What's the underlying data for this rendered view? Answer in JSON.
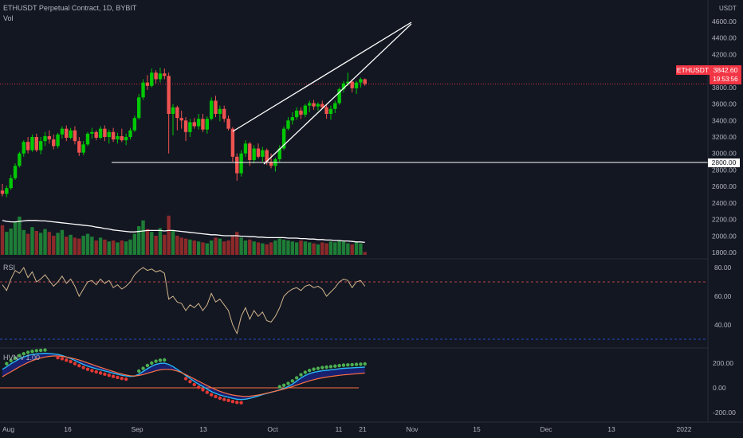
{
  "header": {
    "symbol_line": "ETHUSDT Perpetual Contract, 1D, BYBIT",
    "vol_label": "Vol"
  },
  "price_axis": {
    "currency": "USDT",
    "ticks": [
      "4600.00",
      "4400.00",
      "4200.00",
      "4000.00",
      "3800.00",
      "3600.00",
      "3400.00",
      "3200.00",
      "3000.00",
      "2800.00",
      "2600.00",
      "2400.00",
      "2200.00",
      "2000.00",
      "1800.00"
    ],
    "last_price_label": "ETHUSDT",
    "last_price": "3842.60",
    "countdown": "19:53:56",
    "hline_price": "2800.00"
  },
  "rsi": {
    "label": "RSI",
    "ticks": [
      "80.00",
      "60.00",
      "40.00"
    ],
    "upper_band": 70,
    "lower_band": 30
  },
  "hvn": {
    "label": "HVN v 1.00",
    "ticks": [
      "200.00",
      "0.00",
      "-200.00"
    ]
  },
  "time_axis": {
    "labels": [
      "Aug",
      "16",
      "Sep",
      "13",
      "Oct",
      "11",
      "21",
      "Nov",
      "15",
      "Dec",
      "13",
      "2022"
    ]
  },
  "colors": {
    "background": "#131722",
    "up": "#26a69a",
    "up_bright": "#00c805",
    "down": "#ef5350",
    "accent_red": "#f23645",
    "rsi_line": "#d1b48c",
    "hvn_fill": "#1a237e",
    "hvn_fast": "#29b6f6",
    "hvn_slow": "#ff7043"
  },
  "chart_data": {
    "type": "candlestick",
    "price_range": [
      1750,
      4650
    ],
    "candles": [
      {
        "o": 2550,
        "h": 2630,
        "l": 2480,
        "c": 2510
      },
      {
        "o": 2510,
        "h": 2610,
        "l": 2470,
        "c": 2580
      },
      {
        "o": 2580,
        "h": 2740,
        "l": 2560,
        "c": 2700
      },
      {
        "o": 2700,
        "h": 2880,
        "l": 2680,
        "c": 2850
      },
      {
        "o": 2850,
        "h": 3020,
        "l": 2830,
        "c": 3000
      },
      {
        "o": 3000,
        "h": 3160,
        "l": 2960,
        "c": 3140
      },
      {
        "o": 3140,
        "h": 3200,
        "l": 3000,
        "c": 3040
      },
      {
        "o": 3040,
        "h": 3230,
        "l": 3020,
        "c": 3200
      },
      {
        "o": 3200,
        "h": 3240,
        "l": 3020,
        "c": 3040
      },
      {
        "o": 3040,
        "h": 3200,
        "l": 2990,
        "c": 3150
      },
      {
        "o": 3150,
        "h": 3260,
        "l": 3090,
        "c": 3210
      },
      {
        "o": 3210,
        "h": 3280,
        "l": 3120,
        "c": 3170
      },
      {
        "o": 3170,
        "h": 3230,
        "l": 3050,
        "c": 3090
      },
      {
        "o": 3090,
        "h": 3250,
        "l": 3060,
        "c": 3230
      },
      {
        "o": 3230,
        "h": 3330,
        "l": 3180,
        "c": 3300
      },
      {
        "o": 3300,
        "h": 3340,
        "l": 3150,
        "c": 3190
      },
      {
        "o": 3190,
        "h": 3310,
        "l": 3170,
        "c": 3280
      },
      {
        "o": 3280,
        "h": 3330,
        "l": 3110,
        "c": 3150
      },
      {
        "o": 3150,
        "h": 3200,
        "l": 2970,
        "c": 3010
      },
      {
        "o": 3010,
        "h": 3150,
        "l": 2980,
        "c": 3110
      },
      {
        "o": 3110,
        "h": 3260,
        "l": 3090,
        "c": 3240
      },
      {
        "o": 3240,
        "h": 3310,
        "l": 3180,
        "c": 3260
      },
      {
        "o": 3260,
        "h": 3280,
        "l": 3160,
        "c": 3190
      },
      {
        "o": 3190,
        "h": 3330,
        "l": 3170,
        "c": 3300
      },
      {
        "o": 3300,
        "h": 3340,
        "l": 3150,
        "c": 3200
      },
      {
        "o": 3200,
        "h": 3290,
        "l": 3120,
        "c": 3260
      },
      {
        "o": 3260,
        "h": 3310,
        "l": 3140,
        "c": 3170
      },
      {
        "o": 3170,
        "h": 3250,
        "l": 3120,
        "c": 3210
      },
      {
        "o": 3210,
        "h": 3300,
        "l": 3140,
        "c": 3160
      },
      {
        "o": 3160,
        "h": 3240,
        "l": 3100,
        "c": 3200
      },
      {
        "o": 3200,
        "h": 3310,
        "l": 3170,
        "c": 3280
      },
      {
        "o": 3280,
        "h": 3460,
        "l": 3260,
        "c": 3430
      },
      {
        "o": 3430,
        "h": 3720,
        "l": 3410,
        "c": 3680
      },
      {
        "o": 3680,
        "h": 3900,
        "l": 3650,
        "c": 3860
      },
      {
        "o": 3860,
        "h": 3950,
        "l": 3770,
        "c": 3820
      },
      {
        "o": 3820,
        "h": 4030,
        "l": 3800,
        "c": 3980
      },
      {
        "o": 3980,
        "h": 4010,
        "l": 3850,
        "c": 3900
      },
      {
        "o": 3900,
        "h": 4040,
        "l": 3860,
        "c": 3970
      },
      {
        "o": 3970,
        "h": 4030,
        "l": 3900,
        "c": 3940
      },
      {
        "o": 3940,
        "h": 3980,
        "l": 3000,
        "c": 3480
      },
      {
        "o": 3480,
        "h": 3600,
        "l": 3220,
        "c": 3560
      },
      {
        "o": 3560,
        "h": 3580,
        "l": 3280,
        "c": 3430
      },
      {
        "o": 3430,
        "h": 3520,
        "l": 3300,
        "c": 3400
      },
      {
        "o": 3400,
        "h": 3440,
        "l": 3150,
        "c": 3260
      },
      {
        "o": 3260,
        "h": 3420,
        "l": 3200,
        "c": 3380
      },
      {
        "o": 3380,
        "h": 3430,
        "l": 3300,
        "c": 3330
      },
      {
        "o": 3330,
        "h": 3480,
        "l": 3290,
        "c": 3420
      },
      {
        "o": 3420,
        "h": 3480,
        "l": 3260,
        "c": 3290
      },
      {
        "o": 3290,
        "h": 3450,
        "l": 3240,
        "c": 3420
      },
      {
        "o": 3420,
        "h": 3680,
        "l": 3400,
        "c": 3640
      },
      {
        "o": 3640,
        "h": 3700,
        "l": 3440,
        "c": 3480
      },
      {
        "o": 3480,
        "h": 3580,
        "l": 3390,
        "c": 3540
      },
      {
        "o": 3540,
        "h": 3580,
        "l": 3380,
        "c": 3420
      },
      {
        "o": 3420,
        "h": 3460,
        "l": 3280,
        "c": 3300
      },
      {
        "o": 3300,
        "h": 3320,
        "l": 2900,
        "c": 2960
      },
      {
        "o": 2960,
        "h": 3000,
        "l": 2670,
        "c": 2760
      },
      {
        "o": 2760,
        "h": 3040,
        "l": 2720,
        "c": 3000
      },
      {
        "o": 3000,
        "h": 3160,
        "l": 2960,
        "c": 3120
      },
      {
        "o": 3120,
        "h": 3140,
        "l": 2850,
        "c": 2920
      },
      {
        "o": 2920,
        "h": 3100,
        "l": 2880,
        "c": 3060
      },
      {
        "o": 3060,
        "h": 3120,
        "l": 2940,
        "c": 2960
      },
      {
        "o": 2960,
        "h": 3080,
        "l": 2900,
        "c": 3040
      },
      {
        "o": 3040,
        "h": 3060,
        "l": 2860,
        "c": 2900
      },
      {
        "o": 2900,
        "h": 3000,
        "l": 2820,
        "c": 2850
      },
      {
        "o": 2850,
        "h": 2950,
        "l": 2780,
        "c": 2930
      },
      {
        "o": 2930,
        "h": 3100,
        "l": 2900,
        "c": 3060
      },
      {
        "o": 3060,
        "h": 3330,
        "l": 3040,
        "c": 3300
      },
      {
        "o": 3300,
        "h": 3440,
        "l": 3280,
        "c": 3400
      },
      {
        "o": 3400,
        "h": 3500,
        "l": 3350,
        "c": 3440
      },
      {
        "o": 3440,
        "h": 3560,
        "l": 3410,
        "c": 3520
      },
      {
        "o": 3520,
        "h": 3560,
        "l": 3420,
        "c": 3470
      },
      {
        "o": 3470,
        "h": 3600,
        "l": 3440,
        "c": 3580
      },
      {
        "o": 3580,
        "h": 3640,
        "l": 3500,
        "c": 3610
      },
      {
        "o": 3610,
        "h": 3650,
        "l": 3530,
        "c": 3570
      },
      {
        "o": 3570,
        "h": 3620,
        "l": 3520,
        "c": 3600
      },
      {
        "o": 3600,
        "h": 3640,
        "l": 3540,
        "c": 3560
      },
      {
        "o": 3560,
        "h": 3600,
        "l": 3420,
        "c": 3480
      },
      {
        "o": 3480,
        "h": 3580,
        "l": 3410,
        "c": 3540
      },
      {
        "o": 3540,
        "h": 3640,
        "l": 3490,
        "c": 3610
      },
      {
        "o": 3610,
        "h": 3800,
        "l": 3590,
        "c": 3780
      },
      {
        "o": 3780,
        "h": 3880,
        "l": 3740,
        "c": 3850
      },
      {
        "o": 3850,
        "h": 3980,
        "l": 3820,
        "c": 3870
      },
      {
        "o": 3870,
        "h": 3900,
        "l": 3740,
        "c": 3790
      },
      {
        "o": 3790,
        "h": 3880,
        "l": 3720,
        "c": 3860
      },
      {
        "o": 3860,
        "h": 3920,
        "l": 3800,
        "c": 3900
      },
      {
        "o": 3900,
        "h": 3910,
        "l": 3820,
        "c": 3842.6
      }
    ],
    "volume": [
      62,
      48,
      55,
      70,
      80,
      52,
      44,
      58,
      50,
      46,
      54,
      48,
      40,
      46,
      52,
      38,
      42,
      36,
      34,
      40,
      44,
      38,
      30,
      36,
      32,
      28,
      30,
      26,
      30,
      28,
      32,
      44,
      60,
      72,
      54,
      48,
      40,
      56,
      42,
      82,
      52,
      40,
      36,
      34,
      32,
      30,
      28,
      26,
      24,
      30,
      36,
      34,
      28,
      30,
      40,
      48,
      36,
      30,
      32,
      28,
      26,
      24,
      22,
      26,
      30,
      34,
      32,
      30,
      28,
      26,
      30,
      28,
      26,
      24,
      22,
      26,
      24,
      28,
      26,
      30,
      28,
      24,
      22,
      26,
      24,
      6
    ],
    "volume_ma": [
      72,
      70,
      69,
      69,
      70,
      71,
      72,
      72,
      72,
      71,
      71,
      70,
      69,
      68,
      67,
      66,
      65,
      64,
      63,
      62,
      61,
      60,
      58,
      57,
      55,
      54,
      52,
      51,
      50,
      49,
      48,
      48,
      49,
      50,
      51,
      51,
      51,
      51,
      50,
      51,
      51,
      50,
      49,
      48,
      47,
      46,
      45,
      44,
      43,
      42,
      42,
      41,
      40,
      40,
      40,
      40,
      39,
      39,
      38,
      38,
      37,
      37,
      36,
      36,
      36,
      36,
      36,
      35,
      35,
      35,
      34,
      34,
      33,
      33,
      32,
      32,
      31,
      31,
      30,
      30,
      29,
      29,
      28,
      27,
      27,
      26
    ],
    "rsi": [
      68,
      64,
      72,
      78,
      76,
      80,
      73,
      77,
      70,
      72,
      75,
      71,
      67,
      70,
      74,
      69,
      72,
      67,
      60,
      65,
      70,
      71,
      68,
      72,
      69,
      71,
      66,
      68,
      65,
      67,
      70,
      75,
      78,
      80,
      78,
      79,
      77,
      78,
      76,
      58,
      60,
      56,
      55,
      50,
      54,
      52,
      55,
      50,
      54,
      62,
      56,
      58,
      54,
      50,
      40,
      34,
      46,
      52,
      44,
      50,
      46,
      49,
      43,
      42,
      46,
      52,
      60,
      63,
      65,
      66,
      64,
      67,
      68,
      66,
      67,
      65,
      60,
      63,
      66,
      70,
      72,
      71,
      66,
      70,
      71,
      67
    ],
    "hvn_fast": [
      150,
      170,
      195,
      215,
      235,
      250,
      262,
      270,
      275,
      278,
      280,
      278,
      275,
      270,
      262,
      250,
      238,
      222,
      205,
      190,
      176,
      165,
      155,
      146,
      137,
      128,
      118,
      110,
      102,
      96,
      92,
      95,
      110,
      132,
      155,
      175,
      190,
      198,
      200,
      190,
      172,
      150,
      126,
      100,
      76,
      52,
      30,
      10,
      -10,
      -30,
      -45,
      -58,
      -68,
      -76,
      -85,
      -92,
      -95,
      -92,
      -85,
      -76,
      -66,
      -55,
      -45,
      -36,
      -27,
      -17,
      -5,
      10,
      30,
      55,
      80,
      100,
      115,
      125,
      132,
      138,
      142,
      146,
      150,
      154,
      158,
      160,
      162,
      164,
      166,
      168
    ],
    "hvn_slow": [
      90,
      110,
      130,
      150,
      170,
      188,
      205,
      220,
      232,
      242,
      250,
      255,
      258,
      258,
      255,
      250,
      243,
      235,
      225,
      214,
      202,
      190,
      178,
      166,
      154,
      143,
      132,
      121,
      112,
      104,
      98,
      96,
      100,
      108,
      118,
      128,
      138,
      146,
      150,
      150,
      145,
      136,
      123,
      107,
      90,
      72,
      54,
      36,
      18,
      2,
      -14,
      -28,
      -40,
      -50,
      -58,
      -64,
      -68,
      -70,
      -68,
      -64,
      -58,
      -51,
      -43,
      -35,
      -27,
      -19,
      -10,
      0,
      10,
      22,
      34,
      46,
      57,
      66,
      74,
      81,
      87,
      92,
      97,
      101,
      105,
      108,
      111,
      114,
      117,
      120
    ]
  }
}
